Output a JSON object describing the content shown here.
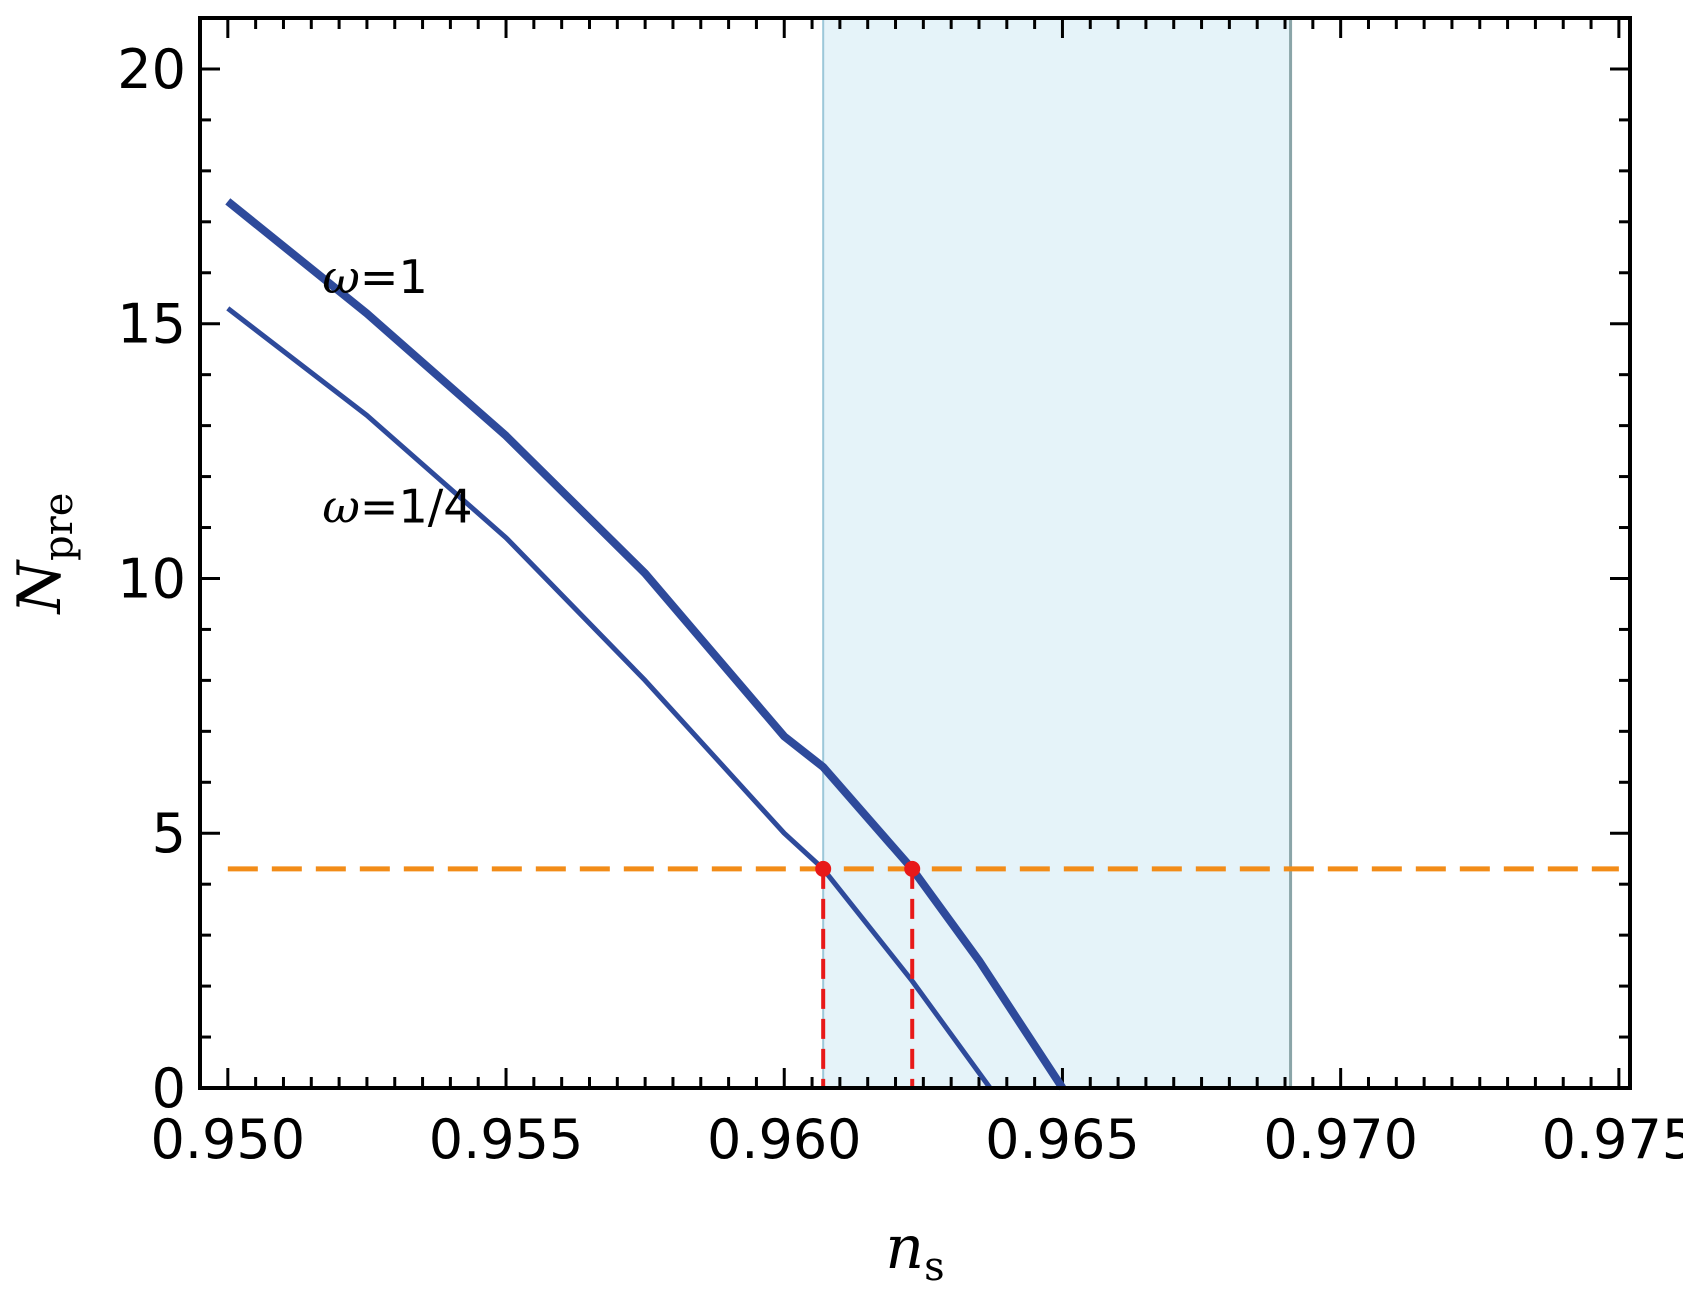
{
  "chart_data": {
    "type": "line",
    "title": "",
    "xlabel": {
      "main": "n",
      "sub": "s"
    },
    "ylabel": {
      "main": "N",
      "sub": "pre"
    },
    "xlim": [
      0.9495,
      0.9752
    ],
    "ylim": [
      0,
      21
    ],
    "xticks": [
      0.95,
      0.955,
      0.96,
      0.965,
      0.97,
      0.975
    ],
    "xtick_labels": [
      "0.950",
      "0.955",
      "0.960",
      "0.965",
      "0.970",
      "0.975"
    ],
    "yticks": [
      0,
      5,
      10,
      15,
      20
    ],
    "ytick_labels": [
      "0",
      "5",
      "10",
      "15",
      "20"
    ],
    "grid": false,
    "shaded_band": {
      "x": [
        0.9607,
        0.9691
      ],
      "color": "#e5f3f9"
    },
    "band_edges": {
      "left_color": "#9cc7d9",
      "right_color": "#8aa5a8"
    },
    "series": [
      {
        "label": "ω=1",
        "color": "#2e4a9b",
        "x": [
          0.95,
          0.9525,
          0.955,
          0.9575,
          0.96,
          0.9607,
          0.9623,
          0.9635,
          0.965
        ],
        "y": [
          17.4,
          15.2,
          12.8,
          10.1,
          6.9,
          6.3,
          4.3,
          2.5,
          0.0
        ]
      },
      {
        "label": "ω=1/4",
        "color": "#2e4a9b",
        "x": [
          0.95,
          0.9525,
          0.955,
          0.9575,
          0.96,
          0.9607,
          0.9623,
          0.9637
        ],
        "y": [
          15.3,
          13.2,
          10.8,
          8.0,
          5.0,
          4.3,
          2.1,
          0.0
        ]
      }
    ],
    "reference_line": {
      "y": 4.3,
      "color": "#f28c18"
    },
    "intersections": [
      {
        "x": 0.9607,
        "y": 4.3,
        "color": "#e81919"
      },
      {
        "x": 0.9623,
        "y": 4.3,
        "color": "#e81919"
      }
    ],
    "annotations": [
      {
        "id": "omega-1",
        "symbol": "ω",
        "rest": "=1",
        "x": 0.9517,
        "y": 15.6
      },
      {
        "id": "omega-quarter",
        "symbol": "ω",
        "rest": "=1/4",
        "x": 0.9517,
        "y": 11.1
      }
    ]
  }
}
